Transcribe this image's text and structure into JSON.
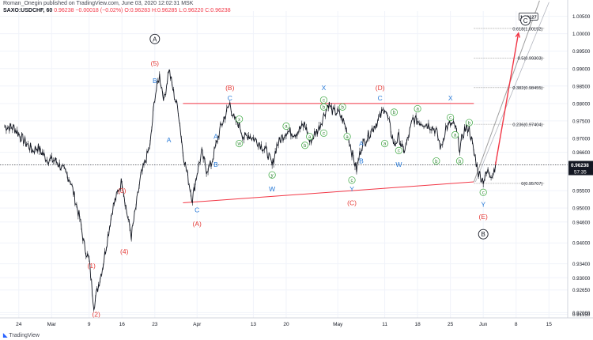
{
  "header": {
    "line1": "Roman_Onegin published on TradingView.com, June 03, 2020 12:02:31 MSK",
    "symbol": "SAXO:USDCHF, 60",
    "ohlc": "0.96238 −0.00018 (−0.02%) O:0.96283 H:0.96285 L:0.96220 C:0.96238"
  },
  "footer": {
    "brand": "TradingView"
  },
  "chart_data": {
    "type": "line",
    "title": "",
    "xlabel": "",
    "ylabel": "",
    "ylim": [
      0.9185,
      1.0065
    ],
    "x_ticks": [
      {
        "label": "24",
        "day": -7
      },
      {
        "label": "Mar",
        "day": 0
      },
      {
        "label": "9",
        "day": 8
      },
      {
        "label": "16",
        "day": 15
      },
      {
        "label": "23",
        "day": 22
      },
      {
        "label": "Apr",
        "day": 31
      },
      {
        "label": "13",
        "day": 43
      },
      {
        "label": "20",
        "day": 50
      },
      {
        "label": "May",
        "day": 61
      },
      {
        "label": "11",
        "day": 71
      },
      {
        "label": "18",
        "day": 78
      },
      {
        "label": "25",
        "day": 85
      },
      {
        "label": "Jun",
        "day": 92
      },
      {
        "label": "8",
        "day": 99
      },
      {
        "label": "15",
        "day": 106
      }
    ],
    "y_ticks": [
      "1.00500",
      "1.00000",
      "0.99500",
      "0.99000",
      "0.98500",
      "0.98000",
      "0.97500",
      "0.97000",
      "0.96600",
      "0.96000",
      "0.95500",
      "0.95000",
      "0.94600",
      "0.94000",
      "0.93400",
      "0.93000",
      "0.92650",
      "0.92000",
      "0.91950"
    ],
    "y_tick_values": [
      1.005,
      1.0,
      0.995,
      0.99,
      0.985,
      0.98,
      0.975,
      0.97,
      0.966,
      0.96,
      0.955,
      0.95,
      0.946,
      0.94,
      0.934,
      0.93,
      0.9265,
      0.92,
      0.9195
    ],
    "price_path": [
      {
        "day": -10,
        "price": 0.9735
      },
      {
        "day": -8,
        "price": 0.973
      },
      {
        "day": -6,
        "price": 0.9695
      },
      {
        "day": -4,
        "price": 0.9665
      },
      {
        "day": -3,
        "price": 0.9675
      },
      {
        "day": -1,
        "price": 0.964
      },
      {
        "day": 1,
        "price": 0.9635
      },
      {
        "day": 3,
        "price": 0.96
      },
      {
        "day": 4,
        "price": 0.958
      },
      {
        "day": 6,
        "price": 0.947
      },
      {
        "day": 7,
        "price": 0.939
      },
      {
        "day": 8,
        "price": 0.935
      },
      {
        "day": 9,
        "price": 0.922
      },
      {
        "day": 10,
        "price": 0.928
      },
      {
        "day": 11,
        "price": 0.934
      },
      {
        "day": 12,
        "price": 0.942
      },
      {
        "day": 13,
        "price": 0.95
      },
      {
        "day": 15,
        "price": 0.958
      },
      {
        "day": 16,
        "price": 0.949
      },
      {
        "day": 17,
        "price": 0.942
      },
      {
        "day": 19,
        "price": 0.959
      },
      {
        "day": 21,
        "price": 0.968
      },
      {
        "day": 22,
        "price": 0.982
      },
      {
        "day": 23,
        "price": 0.988
      },
      {
        "day": 24,
        "price": 0.981
      },
      {
        "day": 25,
        "price": 0.99
      },
      {
        "day": 26,
        "price": 0.983
      },
      {
        "day": 27,
        "price": 0.978
      },
      {
        "day": 28,
        "price": 0.966
      },
      {
        "day": 29,
        "price": 0.959
      },
      {
        "day": 30,
        "price": 0.9525
      },
      {
        "day": 31,
        "price": 0.96
      },
      {
        "day": 32,
        "price": 0.966
      },
      {
        "day": 33,
        "price": 0.961
      },
      {
        "day": 34,
        "price": 0.9625
      },
      {
        "day": 36,
        "price": 0.973
      },
      {
        "day": 38,
        "price": 0.98
      },
      {
        "day": 39,
        "price": 0.975
      },
      {
        "day": 40,
        "price": 0.974
      },
      {
        "day": 41,
        "price": 0.97
      },
      {
        "day": 42,
        "price": 0.971
      },
      {
        "day": 44,
        "price": 0.969
      },
      {
        "day": 46,
        "price": 0.966
      },
      {
        "day": 47,
        "price": 0.962
      },
      {
        "day": 48,
        "price": 0.968
      },
      {
        "day": 50,
        "price": 0.972
      },
      {
        "day": 52,
        "price": 0.9715
      },
      {
        "day": 54,
        "price": 0.974
      },
      {
        "day": 55,
        "price": 0.969
      },
      {
        "day": 57,
        "price": 0.973
      },
      {
        "day": 59,
        "price": 0.98
      },
      {
        "day": 60,
        "price": 0.9775
      },
      {
        "day": 61,
        "price": 0.9775
      },
      {
        "day": 62,
        "price": 0.9755
      },
      {
        "day": 63,
        "price": 0.972
      },
      {
        "day": 64,
        "price": 0.966
      },
      {
        "day": 65,
        "price": 0.961
      },
      {
        "day": 66,
        "price": 0.9675
      },
      {
        "day": 68,
        "price": 0.972
      },
      {
        "day": 70,
        "price": 0.976
      },
      {
        "day": 71,
        "price": 0.979
      },
      {
        "day": 72,
        "price": 0.974
      },
      {
        "day": 73,
        "price": 0.968
      },
      {
        "day": 74,
        "price": 0.9705
      },
      {
        "day": 75,
        "price": 0.966
      },
      {
        "day": 76,
        "price": 0.97
      },
      {
        "day": 77,
        "price": 0.9755
      },
      {
        "day": 79,
        "price": 0.9745
      },
      {
        "day": 81,
        "price": 0.9735
      },
      {
        "day": 82,
        "price": 0.972
      },
      {
        "day": 83,
        "price": 0.967
      },
      {
        "day": 84,
        "price": 0.973
      },
      {
        "day": 85,
        "price": 0.974
      },
      {
        "day": 86,
        "price": 0.9735
      },
      {
        "day": 87,
        "price": 0.967
      },
      {
        "day": 88,
        "price": 0.9725
      },
      {
        "day": 89,
        "price": 0.973
      },
      {
        "day": 90,
        "price": 0.966
      },
      {
        "day": 91,
        "price": 0.96
      },
      {
        "day": 92,
        "price": 0.958
      },
      {
        "day": 93,
        "price": 0.9605
      },
      {
        "day": 94,
        "price": 0.9595
      },
      {
        "day": 94.6,
        "price": 0.9624
      }
    ],
    "last_price": "0.96238",
    "countdown": "57:35",
    "trendlines": [
      {
        "name": "upper",
        "color": "#f23645",
        "from": {
          "day": 28,
          "price": 0.98
        },
        "to": {
          "day": 90,
          "price": 0.98
        }
      },
      {
        "name": "lower",
        "color": "#f23645",
        "from": {
          "day": 28,
          "price": 0.9515
        },
        "to": {
          "day": 90,
          "price": 0.9575
        }
      },
      {
        "name": "fib-base",
        "color": "#9e9e9e",
        "from": {
          "day": 90,
          "price": 0.9575
        },
        "to": {
          "day": 104,
          "price": 1.0095
        }
      }
    ],
    "projection": {
      "color": "#f23645",
      "from": {
        "day": 94.6,
        "price": 0.9624
      },
      "to": {
        "day": 99.5,
        "price": 1.0002
      }
    },
    "fib_levels": [
      {
        "label": "0.618(1.00152)",
        "price": 1.00152
      },
      {
        "label": "0.5(0.99303)",
        "price": 0.99303
      },
      {
        "label": "0.382(0.98455)",
        "price": 0.98455
      },
      {
        "label": "0.236(0.97404)",
        "price": 0.97404
      },
      {
        "label": "0(0.95707)",
        "price": 0.95707
      }
    ],
    "target_label": "1.00127",
    "annotations": [
      {
        "text": "A",
        "day": 22,
        "price": 0.9985,
        "style": "circle-black"
      },
      {
        "text": "(5)",
        "day": 22,
        "price": 0.9915,
        "style": "red"
      },
      {
        "text": "B",
        "day": 22,
        "price": 0.9865,
        "style": "blue"
      },
      {
        "text": "A",
        "day": 25,
        "price": 0.9695,
        "style": "blue"
      },
      {
        "text": "(3)",
        "day": 15,
        "price": 0.955,
        "style": "red"
      },
      {
        "text": "(4)",
        "day": 15.5,
        "price": 0.9375,
        "style": "red"
      },
      {
        "text": "(1)",
        "day": 8.5,
        "price": 0.9335,
        "style": "red"
      },
      {
        "text": "(2)",
        "day": 9.5,
        "price": 0.9195,
        "style": "red"
      },
      {
        "text": "(B)",
        "day": 38,
        "price": 0.9845,
        "style": "red"
      },
      {
        "text": "C",
        "day": 38,
        "price": 0.9815,
        "style": "blue"
      },
      {
        "text": "A",
        "day": 35,
        "price": 0.9705,
        "style": "blue"
      },
      {
        "text": "B",
        "day": 35,
        "price": 0.9625,
        "style": "blue"
      },
      {
        "text": "C",
        "day": 31,
        "price": 0.9495,
        "style": "blue"
      },
      {
        "text": "(A)",
        "day": 31,
        "price": 0.9455,
        "style": "red"
      },
      {
        "text": "x",
        "day": 40,
        "price": 0.9755,
        "style": "circle-green"
      },
      {
        "text": "w",
        "day": 40,
        "price": 0.9685,
        "style": "circle-green"
      },
      {
        "text": "y",
        "day": 47,
        "price": 0.9595,
        "style": "circle-green"
      },
      {
        "text": "W",
        "day": 47,
        "price": 0.9555,
        "style": "blue"
      },
      {
        "text": "a",
        "day": 50,
        "price": 0.9735,
        "style": "circle-green"
      },
      {
        "text": "b",
        "day": 54,
        "price": 0.968,
        "style": "circle-green"
      },
      {
        "text": "a",
        "day": 55,
        "price": 0.9705,
        "style": "circle-green"
      },
      {
        "text": "b",
        "day": 58,
        "price": 0.979,
        "style": "circle-green"
      },
      {
        "text": "c",
        "day": 58,
        "price": 0.9715,
        "style": "circle-green"
      },
      {
        "text": "X",
        "day": 58,
        "price": 0.9845,
        "style": "blue"
      },
      {
        "text": "c",
        "day": 58,
        "price": 0.981,
        "style": "circle-green"
      },
      {
        "text": "b",
        "day": 62,
        "price": 0.979,
        "style": "circle-green"
      },
      {
        "text": "a",
        "day": 63,
        "price": 0.9705,
        "style": "circle-green"
      },
      {
        "text": "A",
        "day": 66,
        "price": 0.9685,
        "style": "blue"
      },
      {
        "text": "B",
        "day": 66,
        "price": 0.9635,
        "style": "blue"
      },
      {
        "text": "c",
        "day": 64,
        "price": 0.958,
        "style": "circle-green"
      },
      {
        "text": "Y",
        "day": 64,
        "price": 0.9555,
        "style": "blue"
      },
      {
        "text": "(C)",
        "day": 64,
        "price": 0.9515,
        "style": "red"
      },
      {
        "text": "(D)",
        "day": 70,
        "price": 0.9845,
        "style": "red"
      },
      {
        "text": "C",
        "day": 70,
        "price": 0.9815,
        "style": "blue"
      },
      {
        "text": "b",
        "day": 73,
        "price": 0.9775,
        "style": "circle-green"
      },
      {
        "text": "a",
        "day": 71,
        "price": 0.9685,
        "style": "circle-green"
      },
      {
        "text": "c",
        "day": 74,
        "price": 0.9665,
        "style": "circle-green"
      },
      {
        "text": "W",
        "day": 74,
        "price": 0.9625,
        "style": "blue"
      },
      {
        "text": "a",
        "day": 78,
        "price": 0.9785,
        "style": "circle-green"
      },
      {
        "text": "b",
        "day": 82,
        "price": 0.9635,
        "style": "circle-green"
      },
      {
        "text": "X",
        "day": 85,
        "price": 0.9815,
        "style": "blue"
      },
      {
        "text": "c",
        "day": 85,
        "price": 0.976,
        "style": "circle-green"
      },
      {
        "text": "a",
        "day": 86,
        "price": 0.971,
        "style": "circle-green"
      },
      {
        "text": "b",
        "day": 89,
        "price": 0.9745,
        "style": "circle-green"
      },
      {
        "text": "b",
        "day": 87,
        "price": 0.9635,
        "style": "circle-green"
      },
      {
        "text": "c",
        "day": 92,
        "price": 0.9545,
        "style": "circle-green"
      },
      {
        "text": "Y",
        "day": 92,
        "price": 0.951,
        "style": "blue"
      },
      {
        "text": "(E)",
        "day": 92,
        "price": 0.9475,
        "style": "red"
      },
      {
        "text": "B",
        "day": 92,
        "price": 0.9425,
        "style": "circle-black"
      },
      {
        "text": "C",
        "day": 101,
        "price": 1.0038,
        "style": "circle-black"
      }
    ]
  }
}
